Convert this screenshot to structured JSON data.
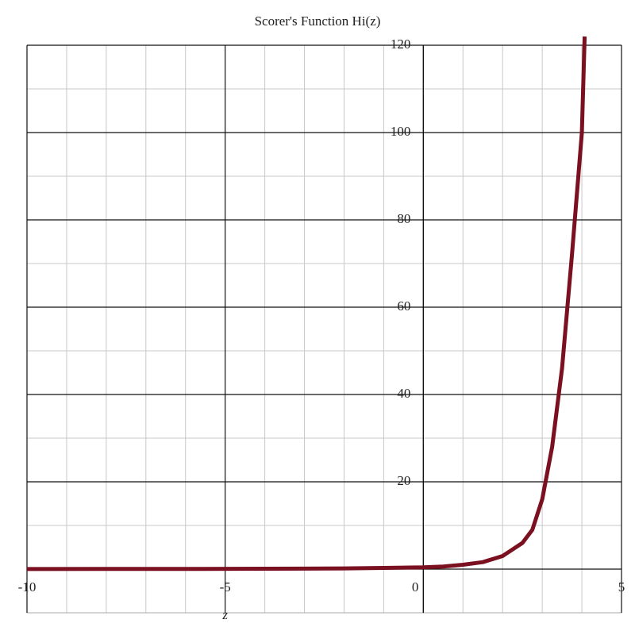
{
  "chart_data": {
    "type": "line",
    "title": "Scorer's Function  Hi(z)",
    "x_label": "z",
    "x": [
      -10,
      -8,
      -6,
      -4,
      -2,
      -1,
      0,
      0.5,
      1,
      1.5,
      2,
      2.5,
      2.75,
      3,
      3.25,
      3.5,
      3.75,
      4,
      4.07
    ],
    "series": [
      {
        "name": "Hi(z)",
        "color": "#7a1020",
        "values": [
          0.03,
          0.04,
          0.05,
          0.08,
          0.16,
          0.27,
          0.41,
          0.6,
          1,
          1.6,
          3,
          6,
          9,
          16,
          28,
          46,
          72,
          100,
          122
        ]
      }
    ],
    "xlim": [
      -10,
      5
    ],
    "ylim": [
      -10,
      120
    ],
    "xticks": [
      -10,
      -5,
      0,
      5
    ],
    "yticks": [
      20,
      40,
      60,
      80,
      100,
      120
    ],
    "minor_xticks": [
      -9,
      -8,
      -7,
      -6,
      -4,
      -3,
      -2,
      -1,
      1,
      2,
      3,
      4
    ],
    "minor_yticks": [
      -10,
      10,
      30,
      50,
      70,
      90,
      110
    ],
    "grid": true
  }
}
